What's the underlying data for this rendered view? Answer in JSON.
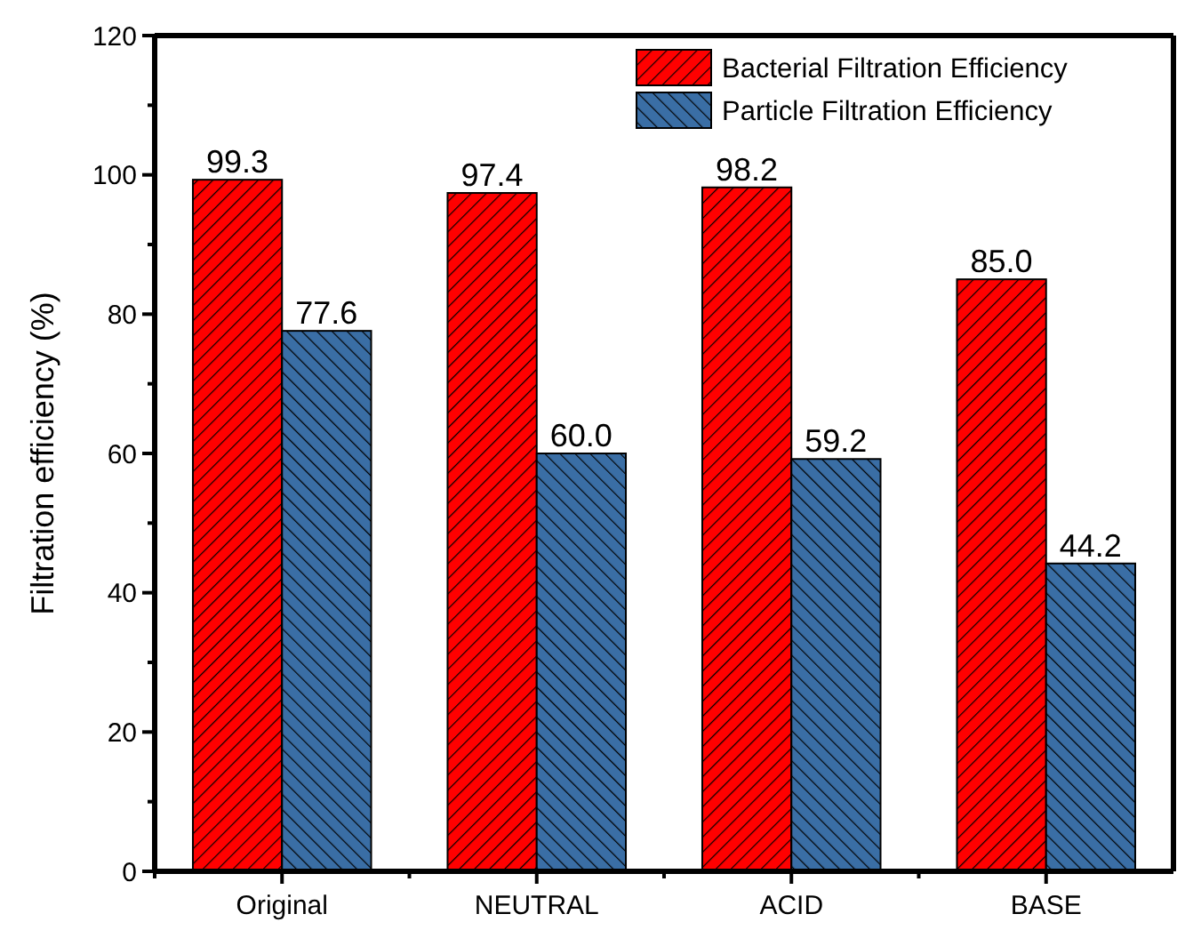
{
  "chart_data": {
    "type": "bar",
    "ylabel": "Filtration efficiency (%)",
    "categories": [
      "Original",
      "NEUTRAL",
      "ACID",
      "BASE"
    ],
    "series": [
      {
        "name": "Bacterial Filtration Efficiency",
        "color": "#ff0000",
        "values": [
          99.3,
          97.4,
          98.2,
          85.0
        ],
        "value_labels": [
          "99.3",
          "97.4",
          "98.2",
          "85.0"
        ]
      },
      {
        "name": "Particle Filtration Efficiency",
        "color": "#3a6ea5",
        "values": [
          77.6,
          60.0,
          59.2,
          44.2
        ],
        "value_labels": [
          "77.6",
          "60.0",
          "59.2",
          "44.2"
        ]
      }
    ],
    "ylim": [
      0,
      120
    ],
    "yticks": [
      0,
      20,
      40,
      60,
      80,
      100,
      120
    ],
    "legend": "top right",
    "grid": false
  }
}
